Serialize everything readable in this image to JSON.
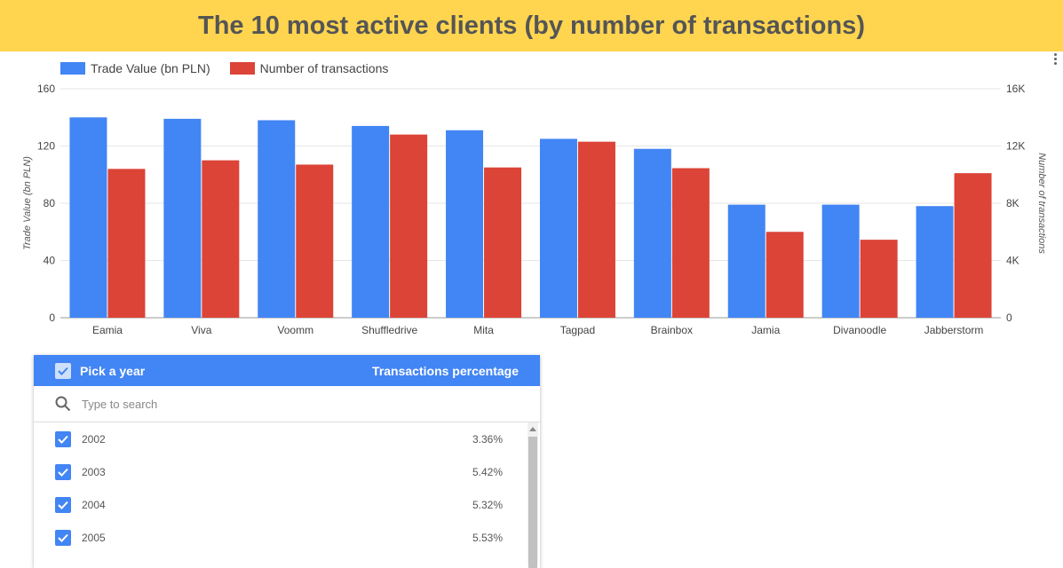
{
  "title": "The 10 most active clients (by number of transactions)",
  "colors": {
    "trade": "#4285f4",
    "transactions": "#db4437",
    "title_bg": "#ffd54f"
  },
  "legend": {
    "trade": "Trade Value (bn PLN)",
    "transactions": "Number of transactions"
  },
  "chart_data": {
    "type": "bar",
    "categories": [
      "Eamia",
      "Viva",
      "Voomm",
      "Shuffledrive",
      "Mita",
      "Tagpad",
      "Brainbox",
      "Jamia",
      "Divanoodle",
      "Jabberstorm"
    ],
    "series": [
      {
        "name": "Trade Value (bn PLN)",
        "axis": "left",
        "values": [
          140,
          139,
          138,
          134,
          131,
          125,
          118,
          79,
          79,
          78
        ]
      },
      {
        "name": "Number of transactions",
        "axis": "right",
        "values": [
          10400,
          11000,
          10700,
          12800,
          10500,
          12300,
          10450,
          6000,
          5450,
          10100
        ]
      }
    ],
    "ylabel": "Trade Value (bn PLN)",
    "y2label": "Number of transactions",
    "ylim": [
      0,
      160
    ],
    "y2lim": [
      0,
      16000
    ],
    "yticks": [
      "0",
      "40",
      "80",
      "120",
      "160"
    ],
    "y2ticks": [
      "0",
      "4K",
      "8K",
      "12K",
      "16K"
    ],
    "grid": true,
    "legend_position": "top-left"
  },
  "filter": {
    "header_label": "Pick a year",
    "header_right": "Transactions percentage",
    "search_placeholder": "Type to search",
    "rows": [
      {
        "year": "2002",
        "pct": "3.36%"
      },
      {
        "year": "2003",
        "pct": "5.42%"
      },
      {
        "year": "2004",
        "pct": "5.32%"
      },
      {
        "year": "2005",
        "pct": "5.53%"
      }
    ]
  }
}
